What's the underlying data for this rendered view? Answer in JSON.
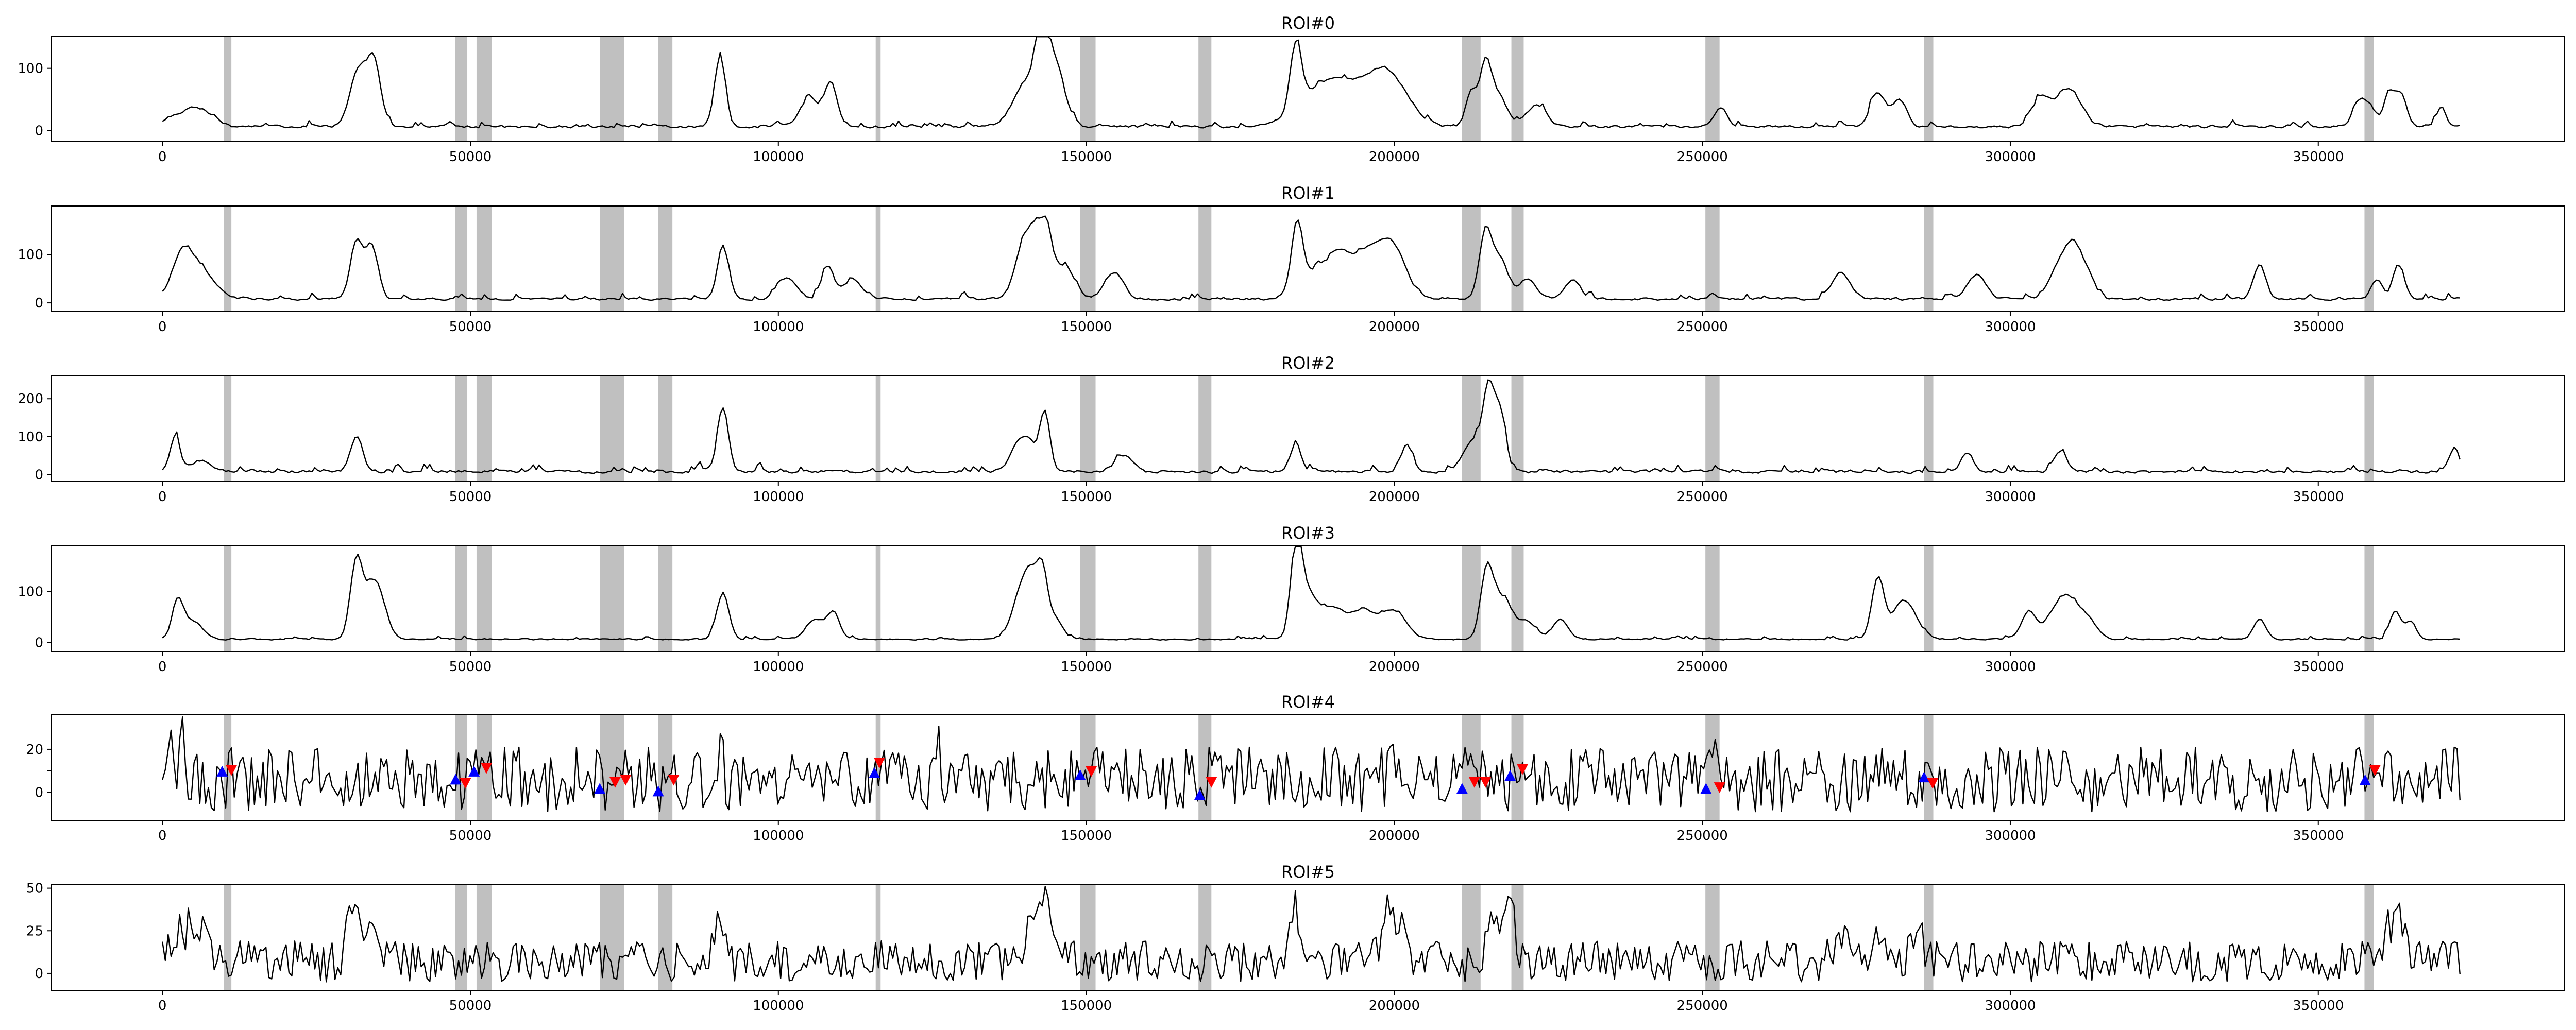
{
  "chart_data": {
    "type": "line",
    "x_range": [
      -18000,
      390000
    ],
    "x_ticks": [
      0,
      50000,
      100000,
      150000,
      200000,
      250000,
      300000,
      350000
    ],
    "n_points": 800,
    "x_max": 373000,
    "shaded_intervals": [
      [
        10000,
        11200
      ],
      [
        47500,
        49500
      ],
      [
        51000,
        53500
      ],
      [
        71000,
        75000
      ],
      [
        80500,
        82800
      ],
      [
        115800,
        116600
      ],
      [
        149000,
        151500
      ],
      [
        168200,
        170300
      ],
      [
        211000,
        214000
      ],
      [
        219000,
        221000
      ],
      [
        250500,
        252800
      ],
      [
        286000,
        287500
      ],
      [
        357500,
        359000
      ]
    ],
    "colors": {
      "shade": "#c0c0c0",
      "line": "#000000",
      "up_marker": "#0000ff",
      "down_marker": "#ff0000"
    },
    "panels": [
      {
        "title": "ROI#0",
        "ylim": [
          -18,
          152
        ],
        "y_ticks": [
          0,
          100
        ],
        "y_tick_labels": [
          "0",
          "100"
        ],
        "baseline": 6,
        "noise": 12,
        "pos_only": true,
        "peaks": [
          [
            3500,
            20,
            2500
          ],
          [
            6500,
            18,
            2000
          ],
          [
            32000,
            95,
            1500
          ],
          [
            34500,
            90,
            1000
          ],
          [
            90500,
            110,
            900
          ],
          [
            105000,
            45,
            1500
          ],
          [
            108500,
            70,
            1000
          ],
          [
            141000,
            80,
            2500
          ],
          [
            142800,
            115,
            900
          ],
          [
            145000,
            85,
            1500
          ],
          [
            184000,
            100,
            900
          ],
          [
            186000,
            40,
            3000
          ],
          [
            191000,
            60,
            3000
          ],
          [
            197000,
            55,
            3000
          ],
          [
            200000,
            50,
            3000
          ],
          [
            212500,
            55,
            900
          ],
          [
            214800,
            100,
            900
          ],
          [
            217000,
            50,
            1200
          ],
          [
            223000,
            35,
            1500
          ],
          [
            253000,
            30,
            1000
          ],
          [
            278500,
            55,
            1200
          ],
          [
            282000,
            45,
            1200
          ],
          [
            305000,
            45,
            1500
          ],
          [
            309500,
            60,
            2000
          ],
          [
            356500,
            40,
            1000
          ],
          [
            358500,
            30,
            900
          ],
          [
            361500,
            55,
            900
          ],
          [
            363500,
            50,
            900
          ],
          [
            370000,
            30,
            700
          ]
        ]
      },
      {
        "title": "ROI#1",
        "ylim": [
          -18,
          200
        ],
        "y_ticks": [
          0,
          100
        ],
        "y_tick_labels": [
          "0",
          "100"
        ],
        "baseline": 8,
        "noise": 14,
        "pos_only": true,
        "peaks": [
          [
            3000,
            60,
            1500
          ],
          [
            5500,
            70,
            2500
          ],
          [
            31500,
            120,
            1000
          ],
          [
            34000,
            110,
            1000
          ],
          [
            91000,
            110,
            900
          ],
          [
            101500,
            45,
            1500
          ],
          [
            108000,
            65,
            1000
          ],
          [
            112000,
            40,
            1500
          ],
          [
            140000,
            120,
            1500
          ],
          [
            141800,
            80,
            900
          ],
          [
            143500,
            130,
            900
          ],
          [
            145500,
            40,
            1500
          ],
          [
            147000,
            40,
            1500
          ],
          [
            154500,
            55,
            1500
          ],
          [
            184200,
            130,
            900
          ],
          [
            186500,
            50,
            2500
          ],
          [
            191000,
            80,
            2000
          ],
          [
            196000,
            95,
            2500
          ],
          [
            200000,
            90,
            2000
          ],
          [
            214800,
            140,
            1000
          ],
          [
            217200,
            80,
            1200
          ],
          [
            221500,
            40,
            1500
          ],
          [
            229000,
            40,
            1200
          ],
          [
            272500,
            55,
            1500
          ],
          [
            294500,
            50,
            1500
          ],
          [
            308000,
            70,
            1500
          ],
          [
            310300,
            90,
            1200
          ],
          [
            312500,
            50,
            1200
          ],
          [
            340500,
            70,
            1000
          ],
          [
            359500,
            40,
            900
          ],
          [
            363000,
            70,
            900
          ]
        ]
      },
      {
        "title": "ROI#2",
        "ylim": [
          -18,
          260
        ],
        "y_ticks": [
          0,
          100,
          200
        ],
        "y_tick_labels": [
          "0",
          "100",
          "200"
        ],
        "baseline": 8,
        "noise": 22,
        "pos_only": true,
        "peaks": [
          [
            2000,
            90,
            800
          ],
          [
            6000,
            30,
            1500
          ],
          [
            31500,
            90,
            1000
          ],
          [
            91000,
            170,
            900
          ],
          [
            139000,
            60,
            1500
          ],
          [
            141000,
            55,
            1500
          ],
          [
            143300,
            140,
            800
          ],
          [
            156000,
            40,
            1500
          ],
          [
            184000,
            70,
            900
          ],
          [
            202000,
            70,
            900
          ],
          [
            212800,
            80,
            1500
          ],
          [
            215300,
            210,
            900
          ],
          [
            217200,
            150,
            900
          ],
          [
            293000,
            50,
            1000
          ],
          [
            308000,
            55,
            1000
          ],
          [
            372000,
            60,
            800
          ]
        ]
      },
      {
        "title": "ROI#3",
        "ylim": [
          -18,
          190
        ],
        "y_ticks": [
          0,
          100
        ],
        "y_tick_labels": [
          "0",
          "100"
        ],
        "baseline": 6,
        "noise": 8,
        "pos_only": true,
        "peaks": [
          [
            2500,
            75,
            900
          ],
          [
            5000,
            35,
            1500
          ],
          [
            31500,
            150,
            1000
          ],
          [
            34500,
            115,
            1500
          ],
          [
            91000,
            90,
            1000
          ],
          [
            106000,
            40,
            1500
          ],
          [
            109000,
            50,
            1000
          ],
          [
            139500,
            95,
            1500
          ],
          [
            141000,
            70,
            1000
          ],
          [
            142800,
            130,
            900
          ],
          [
            145000,
            40,
            1200
          ],
          [
            184100,
            180,
            900
          ],
          [
            186000,
            80,
            1500
          ],
          [
            190000,
            60,
            2000
          ],
          [
            195000,
            55,
            2000
          ],
          [
            200000,
            55,
            2000
          ],
          [
            215000,
            130,
            1000
          ],
          [
            217500,
            80,
            1500
          ],
          [
            221500,
            35,
            1500
          ],
          [
            227000,
            40,
            1200
          ],
          [
            278500,
            120,
            1000
          ],
          [
            282000,
            55,
            1500
          ],
          [
            284000,
            40,
            1500
          ],
          [
            303000,
            55,
            1200
          ],
          [
            307000,
            45,
            1500
          ],
          [
            309500,
            70,
            1500
          ],
          [
            312500,
            40,
            1500
          ],
          [
            340500,
            40,
            1000
          ],
          [
            362500,
            55,
            900
          ],
          [
            365000,
            35,
            900
          ]
        ]
      },
      {
        "title": "ROI#4",
        "ylim": [
          -13,
          36
        ],
        "y_ticks": [
          0,
          10,
          20
        ],
        "y_tick_labels": [
          "0",
          "",
          "20"
        ],
        "baseline": 6,
        "noise": 20,
        "pos_only": false,
        "peaks": [
          [
            1500,
            18,
            500
          ],
          [
            3200,
            20,
            500
          ],
          [
            90500,
            10,
            500
          ],
          [
            126000,
            15,
            500
          ],
          [
            170500,
            18,
            500
          ],
          [
            200500,
            10,
            600
          ],
          [
            251500,
            16,
            500
          ]
        ],
        "up_markers": [
          [
            9700,
            9.5
          ],
          [
            47600,
            5.8
          ],
          [
            50600,
            9.5
          ],
          [
            71000,
            1.5
          ],
          [
            80500,
            0.3
          ],
          [
            115600,
            8.8
          ],
          [
            149000,
            7.8
          ],
          [
            168400,
            -1.5
          ],
          [
            211000,
            1.5
          ],
          [
            218800,
            7.5
          ],
          [
            250600,
            1.5
          ],
          [
            286000,
            6.8
          ],
          [
            357600,
            5.5
          ]
        ],
        "down_markers": [
          [
            11200,
            10.5
          ],
          [
            49200,
            4.5
          ],
          [
            52600,
            11.5
          ],
          [
            73500,
            5.0
          ],
          [
            75200,
            6.0
          ],
          [
            83000,
            6.0
          ],
          [
            116400,
            14.0
          ],
          [
            150800,
            10.0
          ],
          [
            170300,
            5.0
          ],
          [
            213000,
            5.0
          ],
          [
            214800,
            5.0
          ],
          [
            220800,
            11.0
          ],
          [
            252800,
            2.5
          ],
          [
            287400,
            4.5
          ],
          [
            359200,
            10.5
          ]
        ]
      },
      {
        "title": "ROI#5",
        "ylim": [
          -10,
          52
        ],
        "y_ticks": [
          0,
          25,
          50
        ],
        "y_tick_labels": [
          "0",
          "25",
          "50"
        ],
        "baseline": 7,
        "noise": 16,
        "pos_only": false,
        "peaks": [
          [
            3000,
            15,
            2000
          ],
          [
            6000,
            15,
            1500
          ],
          [
            31000,
            28,
            1000
          ],
          [
            34000,
            32,
            1000
          ],
          [
            90500,
            22,
            900
          ],
          [
            141500,
            30,
            1200
          ],
          [
            143500,
            35,
            900
          ],
          [
            184000,
            30,
            900
          ],
          [
            199000,
            32,
            900
          ],
          [
            201000,
            22,
            900
          ],
          [
            216000,
            30,
            900
          ],
          [
            218800,
            32,
            900
          ],
          [
            272500,
            15,
            1500
          ],
          [
            278500,
            22,
            900
          ],
          [
            285000,
            15,
            1000
          ],
          [
            361500,
            20,
            900
          ],
          [
            363500,
            22,
            900
          ]
        ]
      }
    ]
  }
}
